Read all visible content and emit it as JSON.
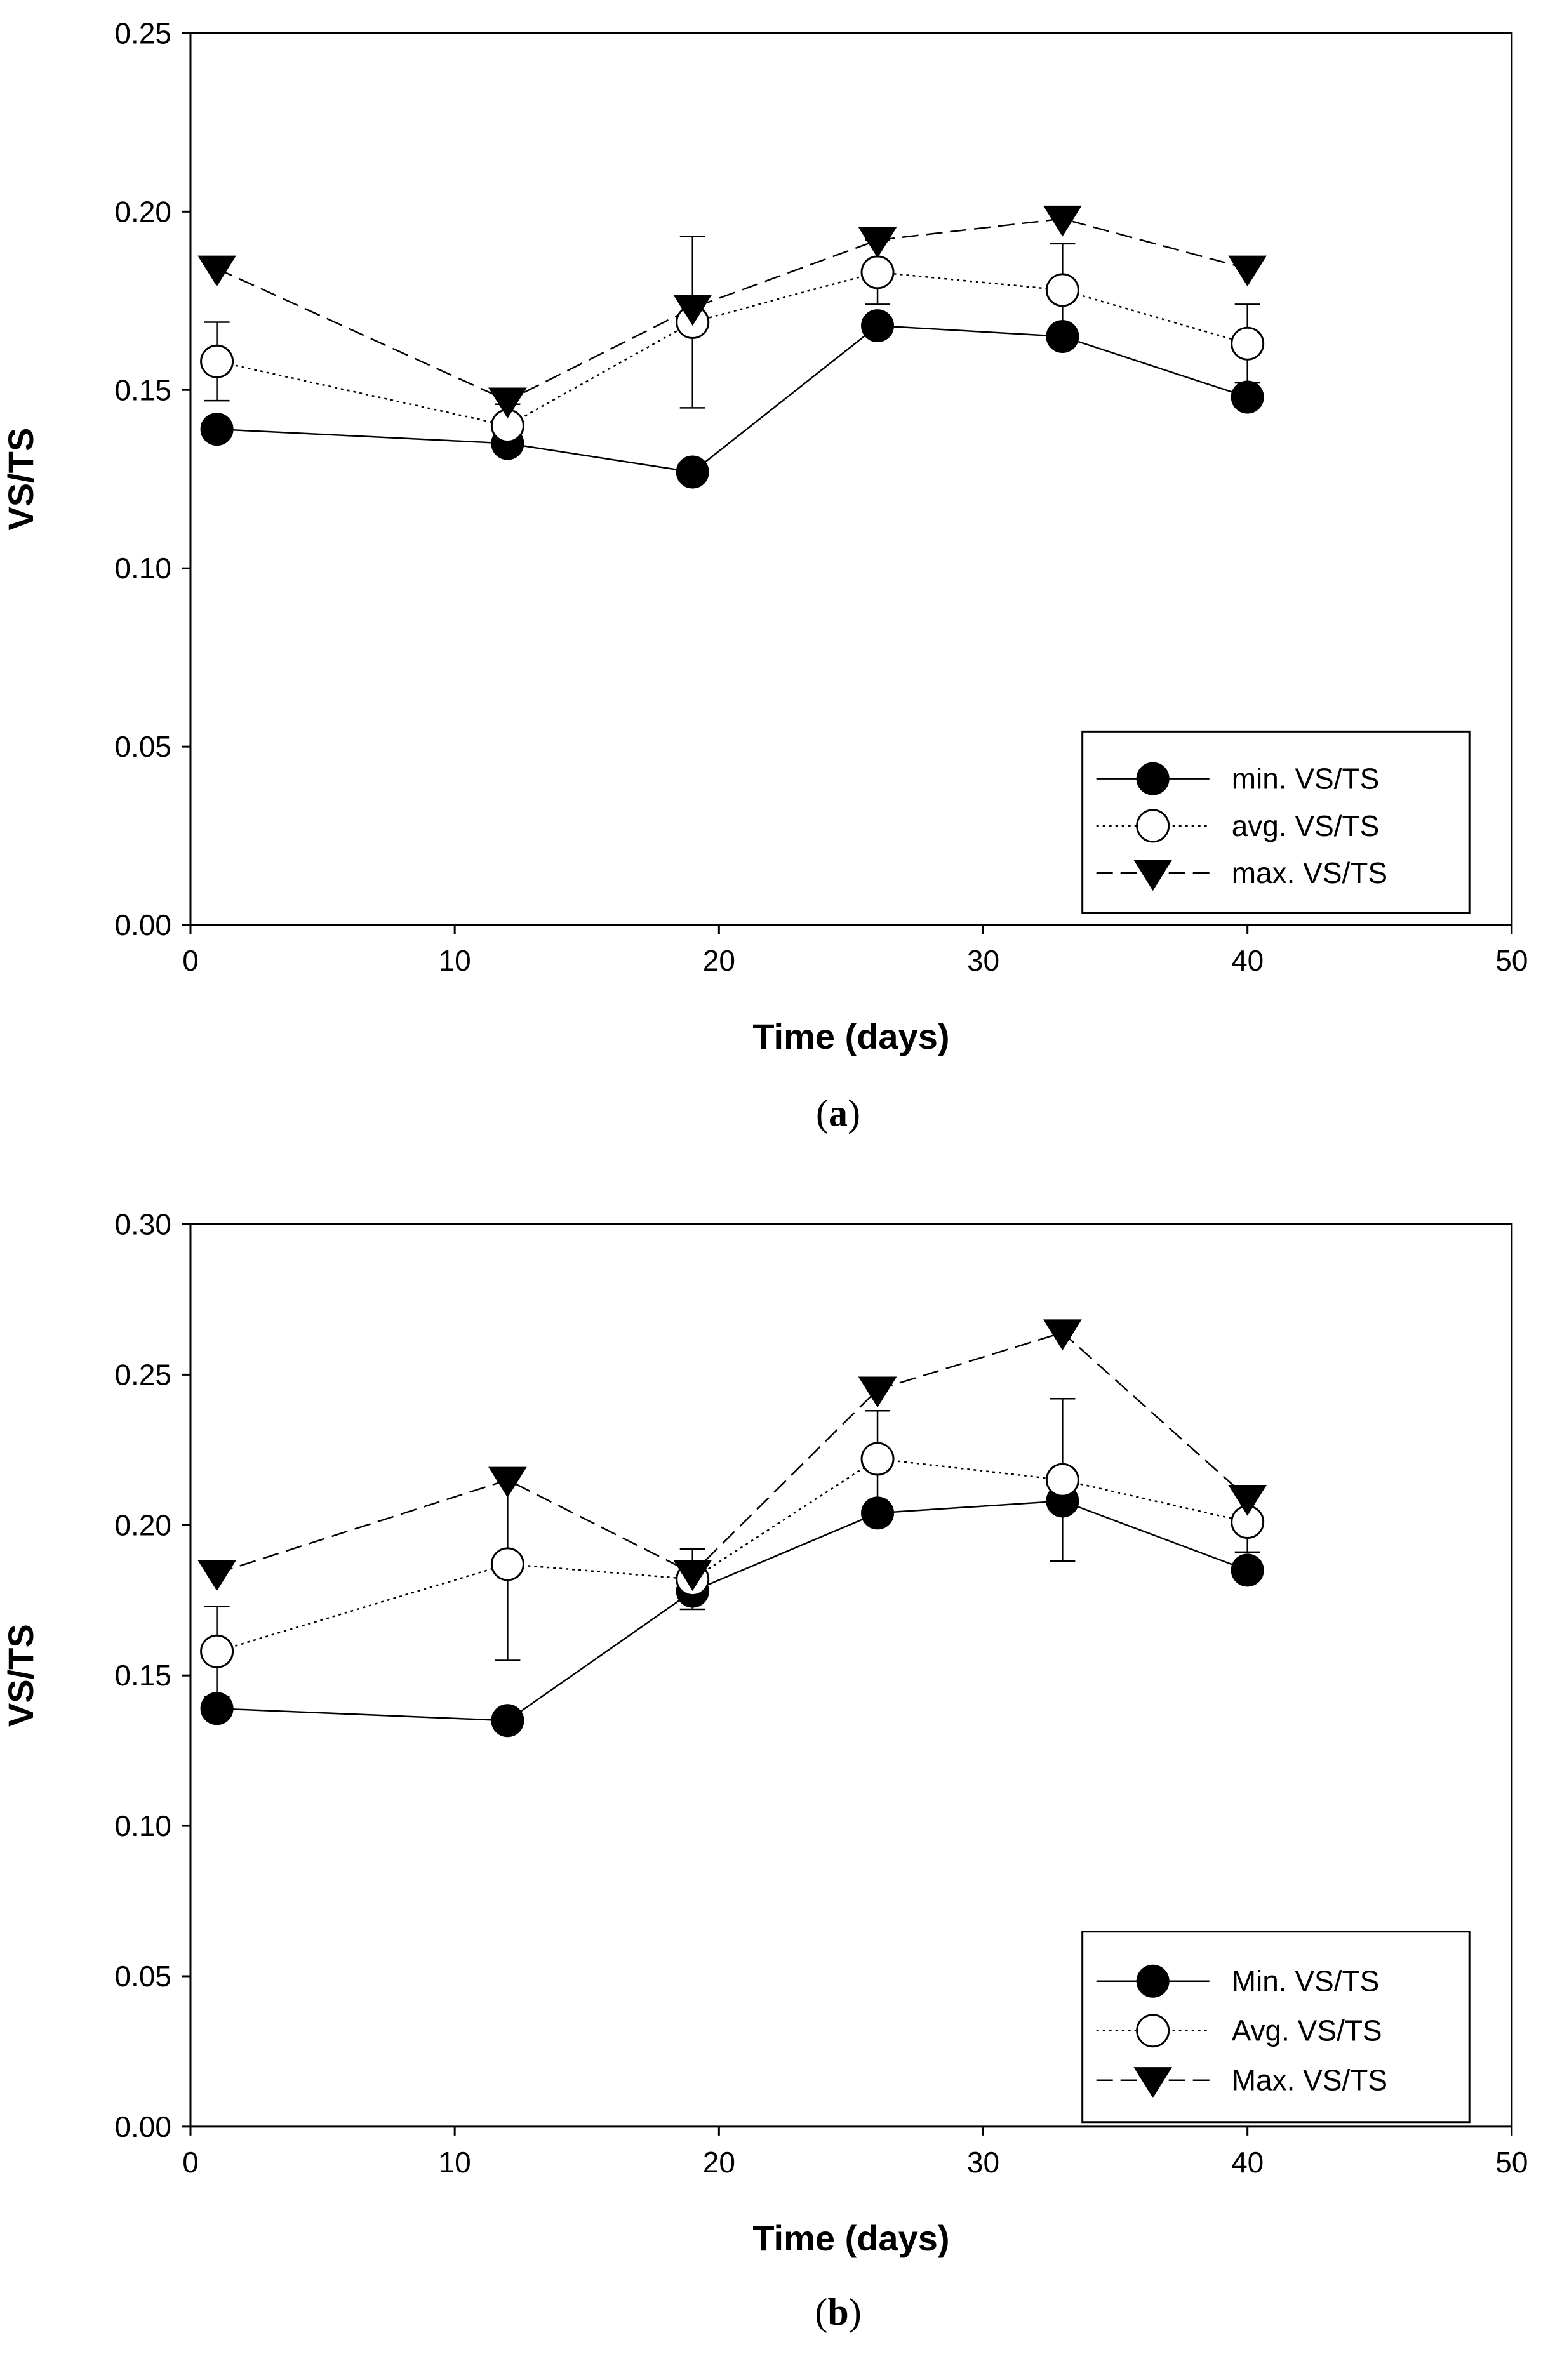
{
  "chart_data": [
    {
      "type": "line",
      "panel_label": "a",
      "xlabel": "Time (days)",
      "ylabel": "VS/TS",
      "xlim": [
        0,
        50
      ],
      "ylim": [
        0,
        0.25
      ],
      "xticks": [
        "0",
        "10",
        "20",
        "30",
        "40",
        "50"
      ],
      "yticks": [
        "0.00",
        "0.05",
        "0.10",
        "0.15",
        "0.20",
        "0.25"
      ],
      "grid": false,
      "legend_position": "bottom-right",
      "x": [
        1,
        12,
        19,
        26,
        33,
        40
      ],
      "series": [
        {
          "name": "min. VS/TS",
          "marker": "filled-circle",
          "line": "solid",
          "values": [
            0.139,
            0.135,
            0.127,
            0.168,
            0.165,
            0.148
          ]
        },
        {
          "name": "avg. VS/TS",
          "marker": "open-circle",
          "line": "dotted",
          "values": [
            0.158,
            0.14,
            0.169,
            0.183,
            0.178,
            0.163
          ],
          "error": [
            0.011,
            0.006,
            0.024,
            0.009,
            0.013,
            0.011
          ]
        },
        {
          "name": "max. VS/TS",
          "marker": "filled-triangle-down",
          "line": "dashed",
          "values": [
            0.184,
            0.147,
            0.173,
            0.192,
            0.198,
            0.184
          ]
        }
      ]
    },
    {
      "type": "line",
      "panel_label": "b",
      "xlabel": "Time (days)",
      "ylabel": "VS/TS",
      "xlim": [
        0,
        50
      ],
      "ylim": [
        0,
        0.3
      ],
      "xticks": [
        "0",
        "10",
        "20",
        "30",
        "40",
        "50"
      ],
      "yticks": [
        "0.00",
        "0.05",
        "0.10",
        "0.15",
        "0.20",
        "0.25",
        "0.30"
      ],
      "grid": false,
      "legend_position": "bottom-right",
      "x": [
        1,
        12,
        19,
        26,
        33,
        40
      ],
      "series": [
        {
          "name": "Min. VS/TS",
          "marker": "filled-circle",
          "line": "solid",
          "values": [
            0.139,
            0.135,
            0.178,
            0.204,
            0.208,
            0.185
          ]
        },
        {
          "name": "Avg. VS/TS",
          "marker": "open-circle",
          "line": "dotted",
          "values": [
            0.158,
            0.187,
            0.182,
            0.222,
            0.215,
            0.201
          ],
          "error": [
            0.015,
            0.032,
            0.01,
            0.016,
            0.027,
            0.01
          ]
        },
        {
          "name": "Max. VS/TS",
          "marker": "filled-triangle-down",
          "line": "dashed",
          "values": [
            0.184,
            0.215,
            0.184,
            0.245,
            0.264,
            0.209
          ]
        }
      ]
    }
  ]
}
